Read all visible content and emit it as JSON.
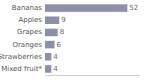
{
  "chart_data": {
    "type": "bar",
    "orientation": "horizontal",
    "categories": [
      "Bananas",
      "Apples",
      "Grapes",
      "Oranges",
      "Strawberries",
      "Mixed fruit*"
    ],
    "values": [
      52,
      9,
      8,
      6,
      4,
      4
    ],
    "color": "#8b8fa8",
    "xlim": [
      0,
      60
    ],
    "data_labels": true,
    "tick_labels": "y"
  }
}
